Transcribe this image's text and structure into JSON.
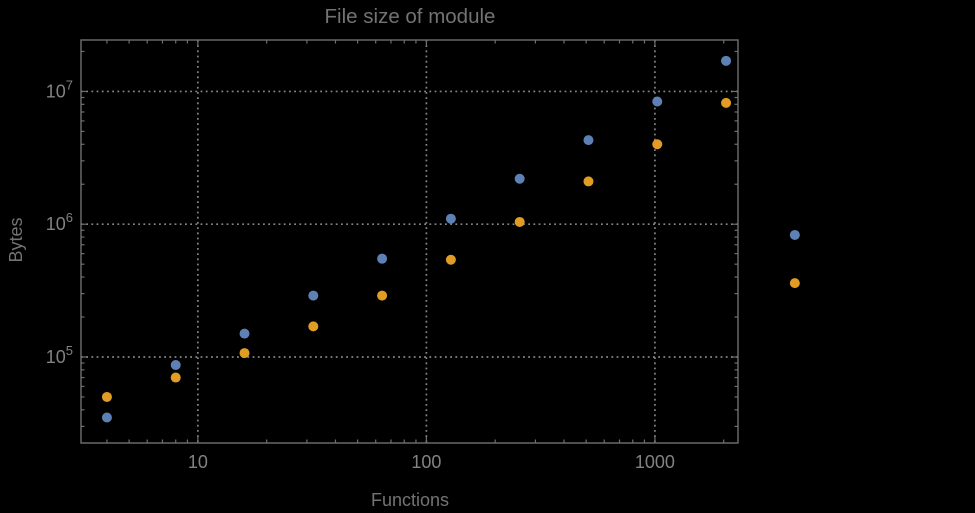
{
  "chart_data": {
    "type": "scatter",
    "title": "File size of module",
    "xlabel": "Functions",
    "ylabel": "Bytes",
    "x_scale": "log",
    "y_scale": "log",
    "xlim": [
      3.08,
      2310
    ],
    "ylim": [
      22500,
      24400000
    ],
    "grid": "dotted lines at major decade ticks, both axes",
    "legend": "none",
    "x_ticks": [
      {
        "value": 10,
        "label": "10"
      },
      {
        "value": 100,
        "label": "100"
      },
      {
        "value": 1000,
        "label": "1000"
      }
    ],
    "y_ticks": [
      {
        "value": 100000,
        "base": "10",
        "exp": "5"
      },
      {
        "value": 1000000,
        "base": "10",
        "exp": "6"
      },
      {
        "value": 10000000,
        "base": "10",
        "exp": "7"
      }
    ],
    "series": [
      {
        "name": "series-1-blue",
        "color": "#5E81B5",
        "points": [
          [
            4,
            35000
          ],
          [
            8,
            87000
          ],
          [
            16,
            150000
          ],
          [
            32,
            290000
          ],
          [
            64,
            550000
          ],
          [
            128,
            1100000
          ],
          [
            256,
            2200000
          ],
          [
            512,
            4300000
          ],
          [
            1024,
            8400000
          ],
          [
            2048,
            17000000
          ],
          [
            4096,
            830000
          ]
        ]
      },
      {
        "name": "series-2-orange",
        "color": "#E19C24",
        "points": [
          [
            4,
            50000
          ],
          [
            8,
            70000
          ],
          [
            16,
            107000
          ],
          [
            32,
            170000
          ],
          [
            64,
            290000
          ],
          [
            128,
            540000
          ],
          [
            256,
            1040000
          ],
          [
            512,
            2100000
          ],
          [
            1024,
            4000000
          ],
          [
            2048,
            8200000
          ],
          [
            4096,
            360000
          ]
        ]
      }
    ],
    "marker": {
      "shape": "circle",
      "radius_px": 5
    },
    "colors": {
      "background": "#000000",
      "frame": "#6f6f6f",
      "grid": "#868686",
      "labels": "#737373",
      "tick_labels": "#828282"
    }
  }
}
